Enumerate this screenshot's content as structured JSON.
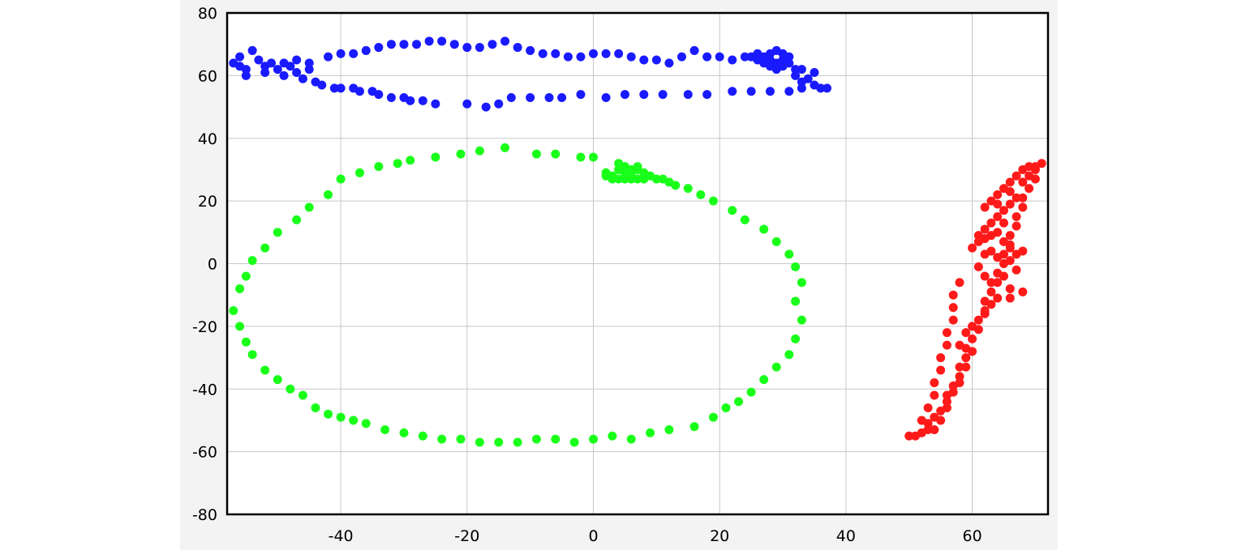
{
  "chart_data": {
    "type": "scatter",
    "title": "",
    "xlabel": "",
    "ylabel": "",
    "xlim": [
      -58,
      72
    ],
    "ylim": [
      -80,
      80
    ],
    "x_ticks": [
      -40,
      -20,
      0,
      20,
      40,
      60
    ],
    "y_ticks": [
      -80,
      -60,
      -40,
      -20,
      0,
      20,
      40,
      60,
      80
    ],
    "x_tick_labels": [
      "-40",
      "-20",
      "0",
      "20",
      "40",
      "60"
    ],
    "y_tick_labels": [
      "-80",
      "-60",
      "-40",
      "-20",
      "0",
      "20",
      "40",
      "60",
      "80"
    ],
    "grid": true,
    "legend": "none",
    "series": [
      {
        "color": "#1a1aff",
        "points": [
          [
            -57,
            64
          ],
          [
            -56,
            66
          ],
          [
            -55,
            62
          ],
          [
            -54,
            68
          ],
          [
            -55,
            60
          ],
          [
            -56,
            63
          ],
          [
            -53,
            65
          ],
          [
            -52,
            61
          ],
          [
            -51,
            64
          ],
          [
            -50,
            62
          ],
          [
            -49,
            60
          ],
          [
            -48,
            63
          ],
          [
            -47,
            61
          ],
          [
            -46,
            59
          ],
          [
            -45,
            62
          ],
          [
            -44,
            58
          ],
          [
            -43,
            57
          ],
          [
            -41,
            56
          ],
          [
            -40,
            56
          ],
          [
            -38,
            56
          ],
          [
            -37,
            55
          ],
          [
            -35,
            55
          ],
          [
            -34,
            54
          ],
          [
            -32,
            53
          ],
          [
            -30,
            53
          ],
          [
            -29,
            52
          ],
          [
            -27,
            52
          ],
          [
            -25,
            51
          ],
          [
            -52,
            63
          ],
          [
            -49,
            64
          ],
          [
            -47,
            65
          ],
          [
            -45,
            64
          ],
          [
            -42,
            66
          ],
          [
            -40,
            67
          ],
          [
            -38,
            67
          ],
          [
            -36,
            68
          ],
          [
            -34,
            69
          ],
          [
            -32,
            70
          ],
          [
            -30,
            70
          ],
          [
            -28,
            70
          ],
          [
            -26,
            71
          ],
          [
            -24,
            71
          ],
          [
            -22,
            70
          ],
          [
            -20,
            69
          ],
          [
            -18,
            69
          ],
          [
            -16,
            70
          ],
          [
            -14,
            71
          ],
          [
            -12,
            69
          ],
          [
            -10,
            68
          ],
          [
            -8,
            67
          ],
          [
            -6,
            67
          ],
          [
            -4,
            66
          ],
          [
            -2,
            66
          ],
          [
            0,
            67
          ],
          [
            2,
            67
          ],
          [
            4,
            67
          ],
          [
            6,
            66
          ],
          [
            8,
            65
          ],
          [
            10,
            65
          ],
          [
            12,
            64
          ],
          [
            14,
            66
          ],
          [
            16,
            68
          ],
          [
            18,
            66
          ],
          [
            20,
            66
          ],
          [
            -20,
            51
          ],
          [
            -17,
            50
          ],
          [
            -15,
            51
          ],
          [
            -13,
            53
          ],
          [
            -10,
            53
          ],
          [
            -7,
            53
          ],
          [
            -5,
            53
          ],
          [
            -2,
            54
          ],
          [
            2,
            53
          ],
          [
            5,
            54
          ],
          [
            8,
            54
          ],
          [
            11,
            54
          ],
          [
            15,
            54
          ],
          [
            18,
            54
          ],
          [
            22,
            55
          ],
          [
            25,
            55
          ],
          [
            28,
            55
          ],
          [
            31,
            55
          ],
          [
            33,
            56
          ],
          [
            35,
            57
          ],
          [
            36,
            56
          ],
          [
            37,
            56
          ],
          [
            22,
            65
          ],
          [
            24,
            66
          ],
          [
            25,
            66
          ],
          [
            26,
            65
          ],
          [
            27,
            66
          ],
          [
            28,
            65
          ],
          [
            29,
            64
          ],
          [
            30,
            65
          ],
          [
            31,
            64
          ],
          [
            27,
            64
          ],
          [
            28,
            67
          ],
          [
            29,
            68
          ],
          [
            30,
            67
          ],
          [
            31,
            66
          ],
          [
            26,
            67
          ],
          [
            28,
            63
          ],
          [
            29,
            62
          ],
          [
            30,
            63
          ],
          [
            32,
            62
          ],
          [
            32,
            60
          ],
          [
            33,
            62
          ],
          [
            35,
            61
          ],
          [
            34,
            59
          ],
          [
            33,
            58
          ]
        ]
      },
      {
        "color": "#1aff1a",
        "points": [
          [
            -14,
            37
          ],
          [
            -18,
            36
          ],
          [
            -21,
            35
          ],
          [
            -25,
            34
          ],
          [
            -29,
            33
          ],
          [
            -31,
            32
          ],
          [
            -34,
            31
          ],
          [
            -37,
            29
          ],
          [
            -40,
            27
          ],
          [
            -42,
            22
          ],
          [
            -45,
            18
          ],
          [
            -47,
            14
          ],
          [
            -50,
            10
          ],
          [
            -52,
            5
          ],
          [
            -54,
            1
          ],
          [
            -55,
            -4
          ],
          [
            -56,
            -8
          ],
          [
            -57,
            -15
          ],
          [
            -56,
            -20
          ],
          [
            -55,
            -25
          ],
          [
            -54,
            -29
          ],
          [
            -52,
            -34
          ],
          [
            -50,
            -37
          ],
          [
            -48,
            -40
          ],
          [
            -46,
            -42
          ],
          [
            -44,
            -46
          ],
          [
            -42,
            -48
          ],
          [
            -40,
            -49
          ],
          [
            -38,
            -50
          ],
          [
            -36,
            -51
          ],
          [
            -33,
            -53
          ],
          [
            -30,
            -54
          ],
          [
            -27,
            -55
          ],
          [
            -24,
            -56
          ],
          [
            -21,
            -56
          ],
          [
            -18,
            -57
          ],
          [
            -15,
            -57
          ],
          [
            -12,
            -57
          ],
          [
            -9,
            -56
          ],
          [
            -6,
            -56
          ],
          [
            -3,
            -57
          ],
          [
            0,
            -56
          ],
          [
            3,
            -55
          ],
          [
            6,
            -56
          ],
          [
            9,
            -54
          ],
          [
            12,
            -53
          ],
          [
            16,
            -52
          ],
          [
            19,
            -49
          ],
          [
            21,
            -46
          ],
          [
            23,
            -44
          ],
          [
            25,
            -41
          ],
          [
            27,
            -37
          ],
          [
            29,
            -33
          ],
          [
            31,
            -29
          ],
          [
            32,
            -24
          ],
          [
            33,
            -18
          ],
          [
            32,
            -12
          ],
          [
            33,
            -6
          ],
          [
            32,
            -1
          ],
          [
            31,
            3
          ],
          [
            29,
            7
          ],
          [
            27,
            11
          ],
          [
            24,
            14
          ],
          [
            22,
            17
          ],
          [
            19,
            20
          ],
          [
            17,
            22
          ],
          [
            15,
            24
          ],
          [
            13,
            25
          ],
          [
            -9,
            35
          ],
          [
            -6,
            35
          ],
          [
            -2,
            34
          ],
          [
            0,
            34
          ],
          [
            2,
            29
          ],
          [
            3,
            28
          ],
          [
            4,
            30
          ],
          [
            5,
            29
          ],
          [
            6,
            28
          ],
          [
            7,
            30
          ],
          [
            8,
            29
          ],
          [
            9,
            28
          ],
          [
            10,
            27
          ],
          [
            11,
            27
          ],
          [
            12,
            26
          ],
          [
            3,
            27
          ],
          [
            4,
            27
          ],
          [
            5,
            27
          ],
          [
            6,
            27
          ],
          [
            7,
            27
          ],
          [
            8,
            27
          ],
          [
            2,
            28
          ],
          [
            4,
            32
          ],
          [
            5,
            31
          ],
          [
            6,
            30
          ],
          [
            7,
            31
          ]
        ]
      },
      {
        "color": "#ff1a1a",
        "points": [
          [
            50,
            -55
          ],
          [
            51,
            -55
          ],
          [
            52,
            -54
          ],
          [
            53,
            -53
          ],
          [
            53,
            -51
          ],
          [
            54,
            -49
          ],
          [
            55,
            -47
          ],
          [
            56,
            -44
          ],
          [
            56,
            -42
          ],
          [
            57,
            -39
          ],
          [
            58,
            -36
          ],
          [
            58,
            -33
          ],
          [
            59,
            -30
          ],
          [
            59,
            -27
          ],
          [
            60,
            -24
          ],
          [
            61,
            -21
          ],
          [
            61,
            -18
          ],
          [
            62,
            -15
          ],
          [
            62,
            -12
          ],
          [
            63,
            -9
          ],
          [
            64,
            -6
          ],
          [
            64,
            -3
          ],
          [
            65,
            0
          ],
          [
            65,
            3
          ],
          [
            66,
            6
          ],
          [
            66,
            9
          ],
          [
            67,
            12
          ],
          [
            67,
            15
          ],
          [
            68,
            18
          ],
          [
            68,
            21
          ],
          [
            69,
            24
          ],
          [
            70,
            27
          ],
          [
            70,
            30
          ],
          [
            71,
            32
          ],
          [
            52,
            -50
          ],
          [
            53,
            -46
          ],
          [
            54,
            -42
          ],
          [
            54,
            -38
          ],
          [
            55,
            -34
          ],
          [
            55,
            -30
          ],
          [
            56,
            -26
          ],
          [
            56,
            -22
          ],
          [
            57,
            -18
          ],
          [
            57,
            -14
          ],
          [
            57,
            -10
          ],
          [
            58,
            -6
          ],
          [
            60,
            5
          ],
          [
            61,
            7
          ],
          [
            62,
            8
          ],
          [
            63,
            9
          ],
          [
            64,
            10
          ],
          [
            65,
            7
          ],
          [
            66,
            5
          ],
          [
            67,
            3
          ],
          [
            68,
            4
          ],
          [
            62,
            11
          ],
          [
            63,
            13
          ],
          [
            64,
            15
          ],
          [
            65,
            17
          ],
          [
            66,
            19
          ],
          [
            67,
            21
          ],
          [
            62,
            3
          ],
          [
            63,
            4
          ],
          [
            61,
            9
          ],
          [
            64,
            2
          ],
          [
            66,
            1
          ],
          [
            67,
            -2
          ],
          [
            68,
            -9
          ],
          [
            66,
            -8
          ],
          [
            64,
            -11
          ],
          [
            63,
            -13
          ],
          [
            62,
            -16
          ],
          [
            60,
            -20
          ],
          [
            59,
            -22
          ],
          [
            58,
            -26
          ],
          [
            62,
            18
          ],
          [
            63,
            20
          ],
          [
            64,
            22
          ],
          [
            65,
            24
          ],
          [
            66,
            26
          ],
          [
            67,
            28
          ],
          [
            68,
            30
          ],
          [
            69,
            31
          ],
          [
            70,
            31
          ],
          [
            69,
            28
          ],
          [
            68,
            26
          ],
          [
            66,
            23
          ],
          [
            64,
            19
          ],
          [
            65,
            13
          ],
          [
            62,
            -4
          ],
          [
            61,
            -1
          ],
          [
            63,
            -6
          ],
          [
            65,
            -4
          ],
          [
            66,
            -11
          ],
          [
            60,
            -28
          ],
          [
            59,
            -33
          ],
          [
            58,
            -38
          ],
          [
            57,
            -41
          ],
          [
            56,
            -46
          ],
          [
            55,
            -50
          ],
          [
            54,
            -53
          ]
        ]
      }
    ]
  }
}
